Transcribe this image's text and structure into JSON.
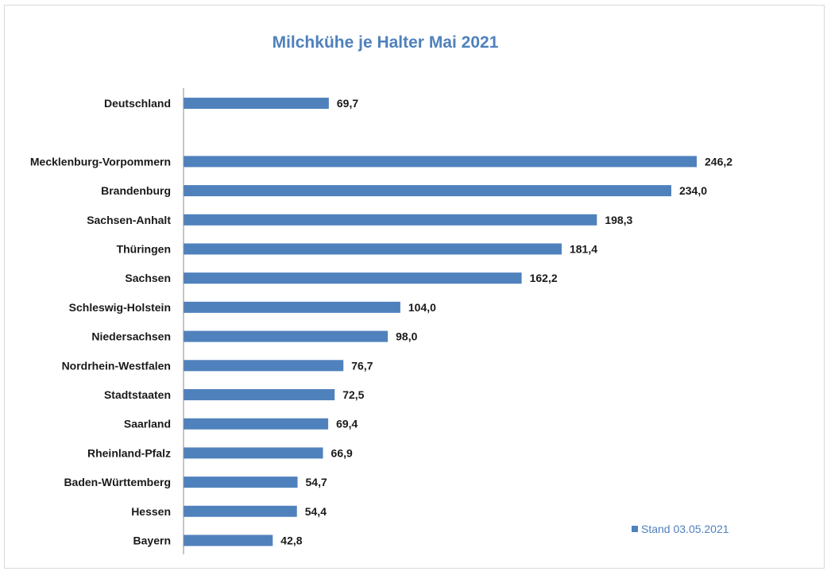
{
  "chart_data": {
    "type": "bar",
    "orientation": "horizontal",
    "title": "Milchkühe je Halter Mai 2021",
    "xlabel": "",
    "ylabel": "",
    "categories": [
      "Deutschland",
      "",
      "Mecklenburg-Vorpommern",
      "Brandenburg",
      "Sachsen-Anhalt",
      "Thüringen",
      "Sachsen",
      "Schleswig-Holstein",
      "Niedersachsen",
      "Nordrhein-Westfalen",
      "Stadtstaaten",
      "Saarland",
      "Rheinland-Pfalz",
      "Baden-Württemberg",
      "Hessen",
      "Bayern"
    ],
    "series": [
      {
        "name": "Stand 03.05.2021",
        "values": [
          69.7,
          null,
          246.2,
          234.0,
          198.3,
          181.4,
          162.2,
          104.0,
          98.0,
          76.7,
          72.5,
          69.4,
          66.9,
          54.7,
          54.4,
          42.8
        ],
        "labels": [
          "69,7",
          "",
          "246,2",
          "234,0",
          "198,3",
          "181,4",
          "162,2",
          "104,0",
          "98,0",
          "76,7",
          "72,5",
          "69,4",
          "66,9",
          "54,7",
          "54,4",
          "42,8"
        ]
      }
    ],
    "xlim": [
      0,
      250
    ],
    "grid": false,
    "legend_position": "bottom-right",
    "bar_color": "#4f81bd"
  }
}
